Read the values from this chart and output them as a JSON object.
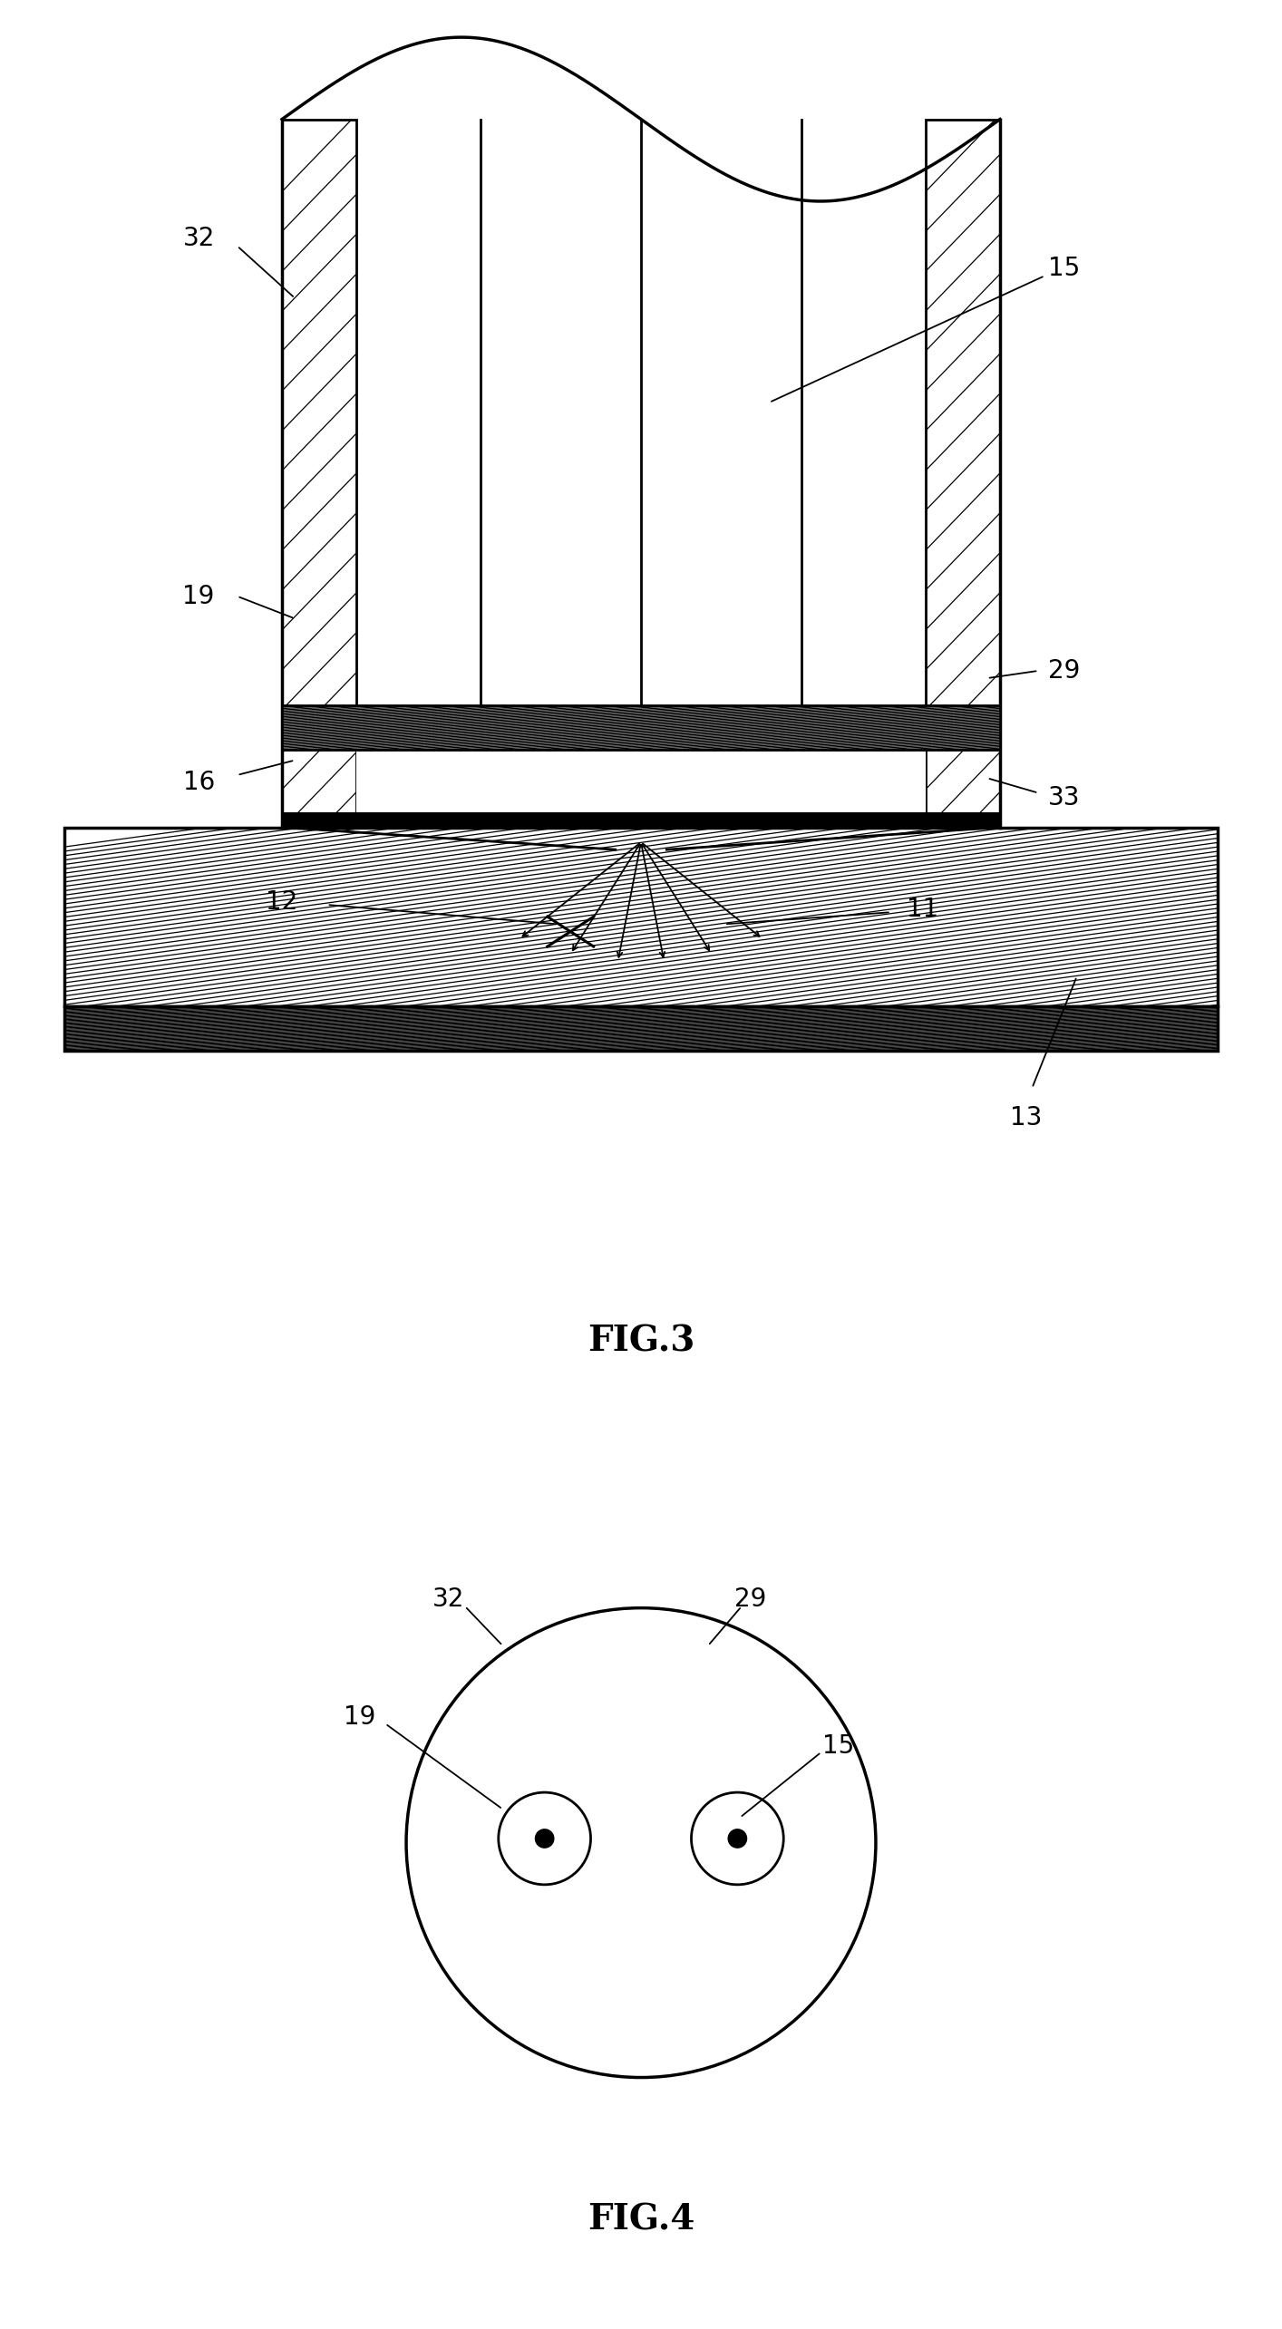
{
  "fig3_title": "FIG.3",
  "fig4_title": "FIG.4",
  "bg_color": "#ffffff",
  "line_color": "#000000",
  "label_fontsize": 20,
  "title_fontsize": 28
}
